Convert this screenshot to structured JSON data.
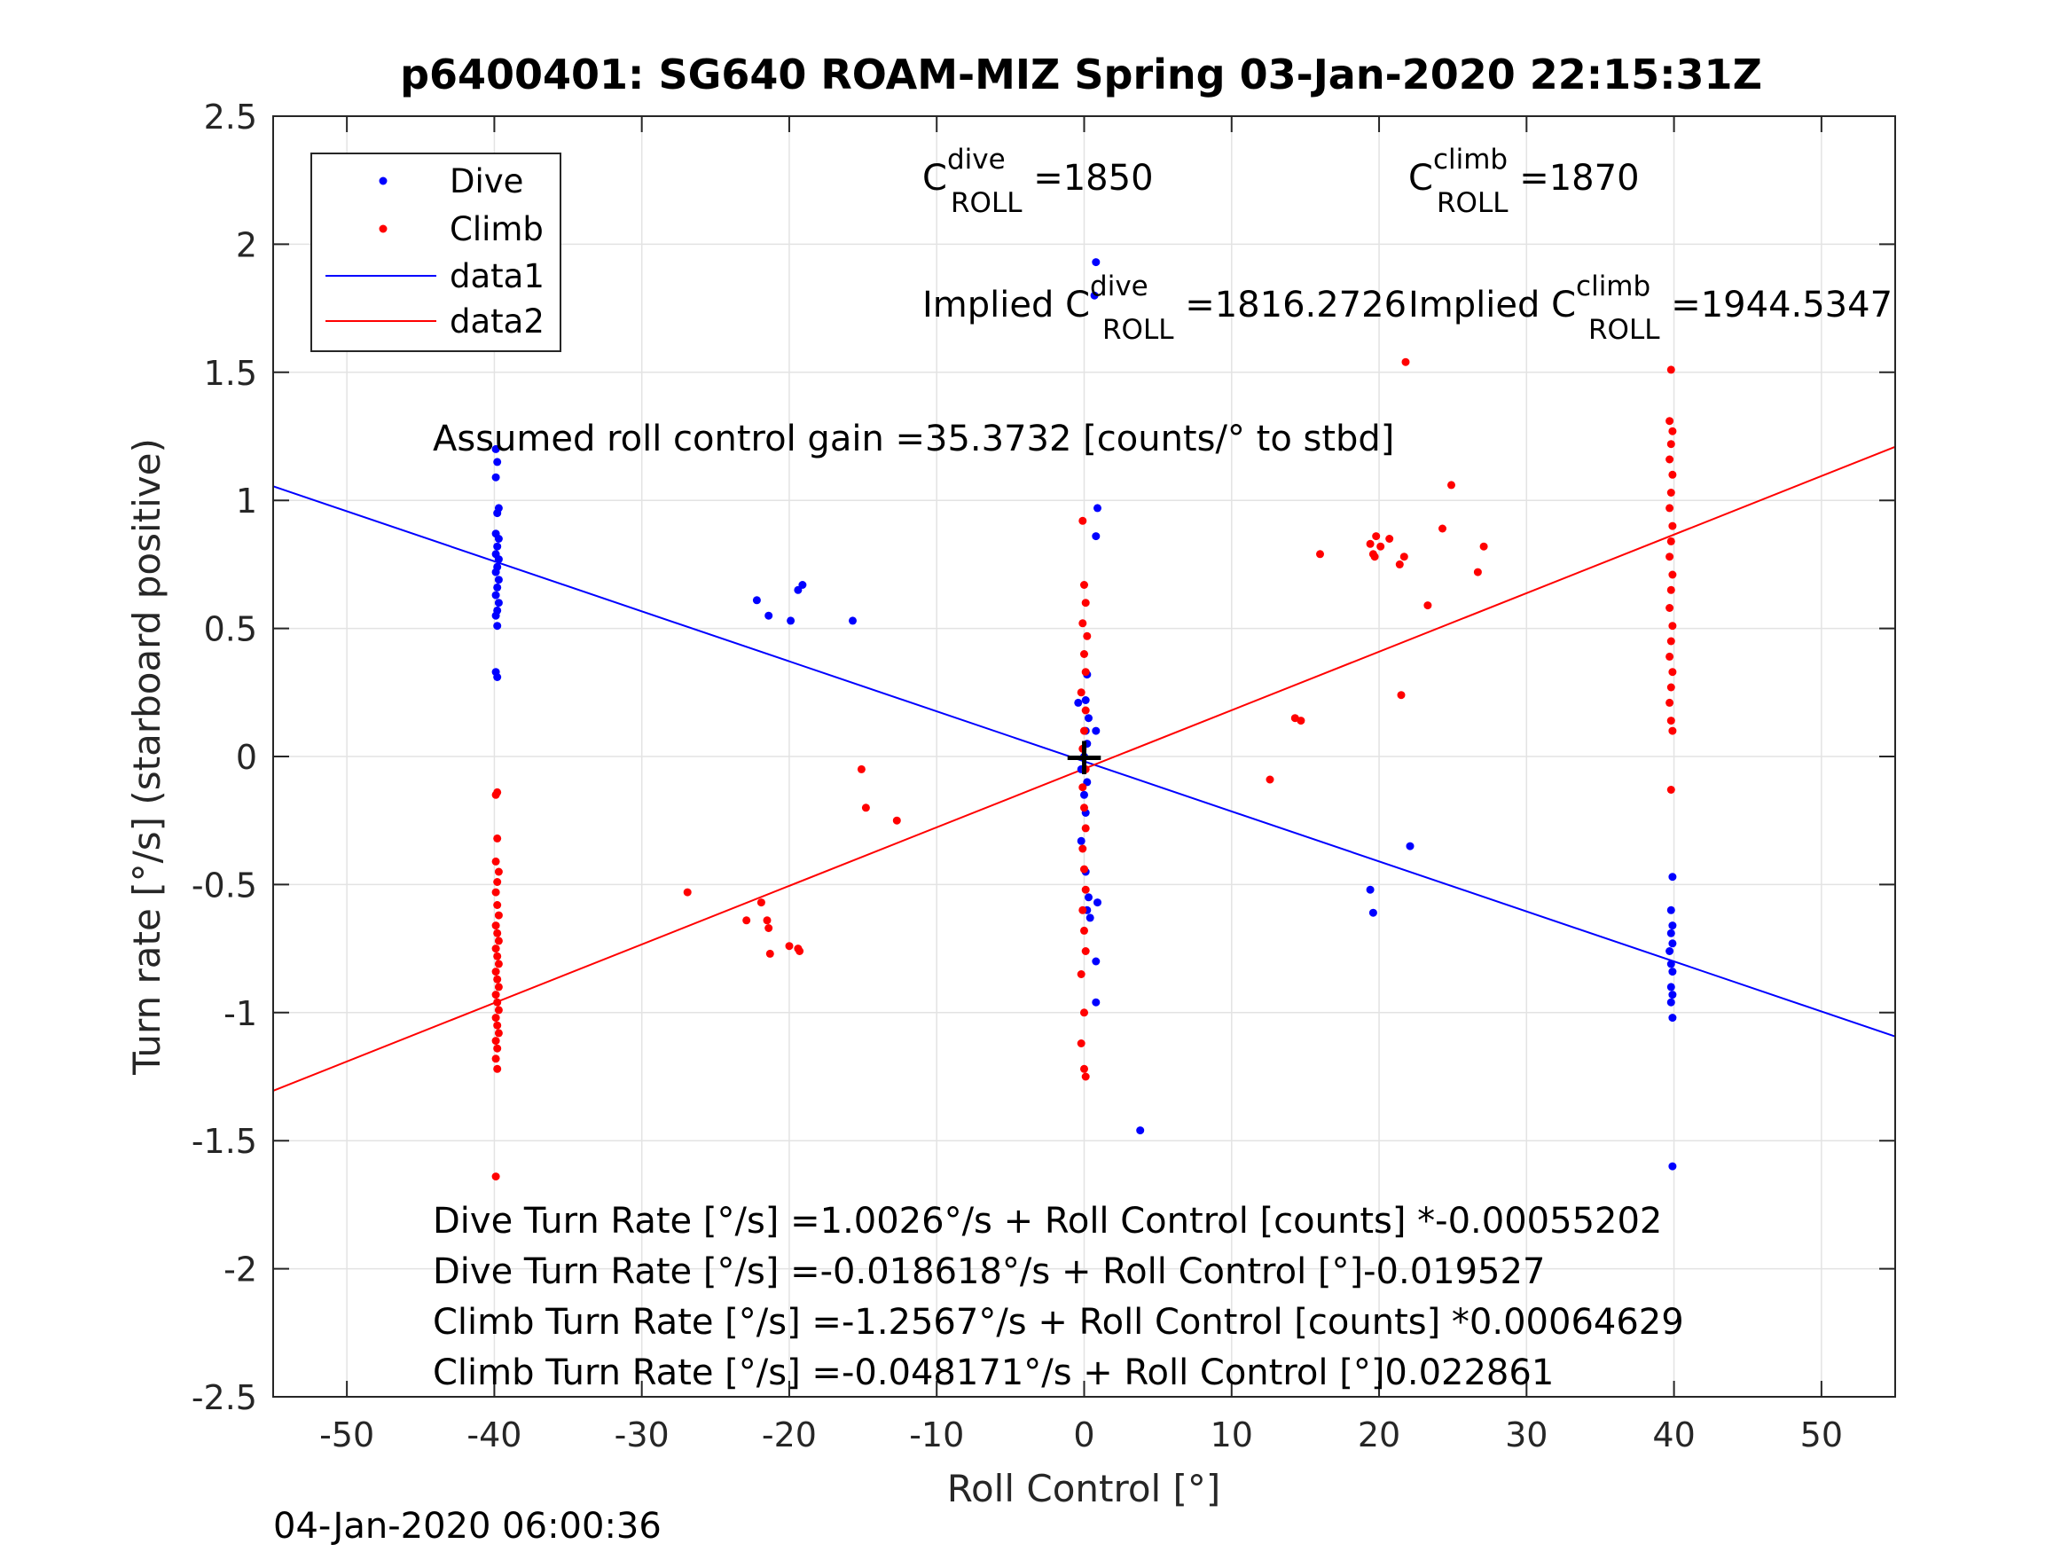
{
  "chart_data": {
    "type": "scatter",
    "title": "p6400401: SG640 ROAM-MIZ Spring 03-Jan-2020 22:15:31Z",
    "xlabel": "Roll Control [°]",
    "ylabel": "Turn rate [°/s] (starboard positive)",
    "xlim": [
      -55,
      55
    ],
    "ylim": [
      -2.5,
      2.5
    ],
    "xticks": [
      -50,
      -40,
      -30,
      -20,
      -10,
      0,
      10,
      20,
      30,
      40,
      50
    ],
    "yticks": [
      -2.5,
      -2,
      -1.5,
      -1,
      -0.5,
      0,
      0.5,
      1,
      1.5,
      2,
      2.5
    ],
    "xtick_labels": [
      "-50",
      "-40",
      "-30",
      "-20",
      "-10",
      "0",
      "10",
      "20",
      "30",
      "40",
      "50"
    ],
    "ytick_labels": [
      "-2.5",
      "-2",
      "-1.5",
      "-1",
      "-0.5",
      "0",
      "0.5",
      "1",
      "1.5",
      "2",
      "2.5"
    ],
    "grid": true,
    "legend_position": "top-left",
    "legend": [
      "Dive",
      "Climb",
      "data1",
      "data2"
    ],
    "colors": {
      "dive": "#0000ff",
      "climb": "#ff0000",
      "axis": "#262626",
      "grid": "#e3e3e3"
    },
    "series": [
      {
        "name": "Dive",
        "marker": "dot",
        "color": "#0000ff",
        "points": [
          [
            -39.9,
            1.2
          ],
          [
            -39.8,
            1.15
          ],
          [
            -39.9,
            1.09
          ],
          [
            -39.7,
            0.97
          ],
          [
            -39.8,
            0.95
          ],
          [
            -39.9,
            0.87
          ],
          [
            -39.7,
            0.85
          ],
          [
            -39.8,
            0.82
          ],
          [
            -39.9,
            0.79
          ],
          [
            -39.7,
            0.77
          ],
          [
            -39.8,
            0.74
          ],
          [
            -39.9,
            0.72
          ],
          [
            -39.7,
            0.69
          ],
          [
            -39.8,
            0.66
          ],
          [
            -39.9,
            0.63
          ],
          [
            -39.7,
            0.6
          ],
          [
            -39.8,
            0.57
          ],
          [
            -39.9,
            0.55
          ],
          [
            -39.8,
            0.51
          ],
          [
            -39.9,
            0.33
          ],
          [
            -39.8,
            0.31
          ],
          [
            -22.2,
            0.61
          ],
          [
            -21.4,
            0.55
          ],
          [
            -19.9,
            0.53
          ],
          [
            -19.4,
            0.65
          ],
          [
            -19.1,
            0.67
          ],
          [
            -15.7,
            0.53
          ],
          [
            -0.4,
            0.21
          ],
          [
            0.2,
            0.32
          ],
          [
            0.1,
            0.22
          ],
          [
            0.3,
            0.15
          ],
          [
            0.1,
            0.1
          ],
          [
            0.2,
            0.05
          ],
          [
            0.0,
            0.0
          ],
          [
            -0.2,
            -0.05
          ],
          [
            0.2,
            -0.1
          ],
          [
            0.0,
            -0.15
          ],
          [
            0.1,
            -0.22
          ],
          [
            -0.2,
            -0.33
          ],
          [
            0.1,
            -0.45
          ],
          [
            0.3,
            -0.55
          ],
          [
            0.2,
            -0.6
          ],
          [
            0.4,
            -0.63
          ],
          [
            0.8,
            0.1
          ],
          [
            0.9,
            -0.57
          ],
          [
            0.8,
            1.93
          ],
          [
            0.7,
            1.8
          ],
          [
            0.9,
            0.97
          ],
          [
            0.8,
            0.86
          ],
          [
            0.8,
            -0.8
          ],
          [
            0.8,
            -0.96
          ],
          [
            3.8,
            -1.46
          ],
          [
            19.4,
            -0.52
          ],
          [
            19.6,
            -0.61
          ],
          [
            22.1,
            -0.35
          ],
          [
            39.9,
            -0.47
          ],
          [
            39.8,
            -0.6
          ],
          [
            39.9,
            -0.66
          ],
          [
            39.8,
            -0.69
          ],
          [
            39.9,
            -0.73
          ],
          [
            39.7,
            -0.76
          ],
          [
            39.8,
            -0.81
          ],
          [
            39.9,
            -0.84
          ],
          [
            39.8,
            -0.9
          ],
          [
            39.9,
            -0.93
          ],
          [
            39.8,
            -0.96
          ],
          [
            39.9,
            -1.02
          ],
          [
            39.9,
            -1.6
          ]
        ]
      },
      {
        "name": "Climb",
        "marker": "dot",
        "color": "#ff0000",
        "points": [
          [
            -39.8,
            -0.14
          ],
          [
            -39.9,
            -0.15
          ],
          [
            -39.8,
            -0.32
          ],
          [
            -39.9,
            -0.41
          ],
          [
            -39.7,
            -0.45
          ],
          [
            -39.8,
            -0.49
          ],
          [
            -39.9,
            -0.53
          ],
          [
            -39.8,
            -0.58
          ],
          [
            -39.7,
            -0.62
          ],
          [
            -39.9,
            -0.66
          ],
          [
            -39.8,
            -0.69
          ],
          [
            -39.7,
            -0.72
          ],
          [
            -39.9,
            -0.75
          ],
          [
            -39.8,
            -0.78
          ],
          [
            -39.7,
            -0.81
          ],
          [
            -39.9,
            -0.84
          ],
          [
            -39.8,
            -0.87
          ],
          [
            -39.7,
            -0.9
          ],
          [
            -39.9,
            -0.93
          ],
          [
            -39.8,
            -0.96
          ],
          [
            -39.7,
            -0.99
          ],
          [
            -39.9,
            -1.02
          ],
          [
            -39.8,
            -1.05
          ],
          [
            -39.7,
            -1.08
          ],
          [
            -39.9,
            -1.11
          ],
          [
            -39.8,
            -1.14
          ],
          [
            -39.9,
            -1.18
          ],
          [
            -39.8,
            -1.22
          ],
          [
            -39.9,
            -1.64
          ],
          [
            -26.9,
            -0.53
          ],
          [
            -22.9,
            -0.64
          ],
          [
            -21.9,
            -0.57
          ],
          [
            -21.5,
            -0.64
          ],
          [
            -21.4,
            -0.67
          ],
          [
            -21.3,
            -0.77
          ],
          [
            -20.0,
            -0.74
          ],
          [
            -19.4,
            -0.75
          ],
          [
            -19.3,
            -0.76
          ],
          [
            -15.1,
            -0.05
          ],
          [
            -14.8,
            -0.2
          ],
          [
            -12.7,
            -0.25
          ],
          [
            -0.1,
            0.92
          ],
          [
            0.0,
            0.67
          ],
          [
            0.1,
            0.6
          ],
          [
            -0.1,
            0.52
          ],
          [
            0.2,
            0.47
          ],
          [
            0.0,
            0.4
          ],
          [
            0.1,
            0.33
          ],
          [
            -0.2,
            0.25
          ],
          [
            0.1,
            0.18
          ],
          [
            0.0,
            0.1
          ],
          [
            -0.1,
            0.03
          ],
          [
            0.1,
            -0.05
          ],
          [
            -0.1,
            -0.12
          ],
          [
            0.0,
            -0.2
          ],
          [
            0.1,
            -0.28
          ],
          [
            -0.1,
            -0.36
          ],
          [
            0.0,
            -0.44
          ],
          [
            0.1,
            -0.52
          ],
          [
            -0.1,
            -0.6
          ],
          [
            0.0,
            -0.68
          ],
          [
            0.1,
            -0.76
          ],
          [
            -0.2,
            -0.85
          ],
          [
            0.0,
            -1.0
          ],
          [
            -0.2,
            -1.12
          ],
          [
            0.0,
            -1.22
          ],
          [
            0.1,
            -1.25
          ],
          [
            12.6,
            -0.09
          ],
          [
            14.3,
            0.15
          ],
          [
            14.7,
            0.14
          ],
          [
            16.0,
            0.79
          ],
          [
            19.4,
            0.83
          ],
          [
            19.6,
            0.79
          ],
          [
            19.7,
            0.78
          ],
          [
            19.8,
            0.86
          ],
          [
            20.1,
            0.82
          ],
          [
            20.7,
            0.85
          ],
          [
            21.4,
            0.75
          ],
          [
            21.5,
            0.24
          ],
          [
            21.7,
            0.78
          ],
          [
            21.8,
            1.54
          ],
          [
            23.3,
            0.59
          ],
          [
            24.3,
            0.89
          ],
          [
            24.9,
            1.06
          ],
          [
            26.7,
            0.72
          ],
          [
            27.1,
            0.82
          ],
          [
            39.8,
            1.51
          ],
          [
            39.7,
            1.31
          ],
          [
            39.9,
            1.27
          ],
          [
            39.8,
            1.22
          ],
          [
            39.7,
            1.16
          ],
          [
            39.9,
            1.1
          ],
          [
            39.8,
            1.03
          ],
          [
            39.7,
            0.97
          ],
          [
            39.9,
            0.9
          ],
          [
            39.8,
            0.84
          ],
          [
            39.7,
            0.78
          ],
          [
            39.9,
            0.71
          ],
          [
            39.8,
            0.65
          ],
          [
            39.7,
            0.58
          ],
          [
            39.9,
            0.51
          ],
          [
            39.8,
            0.45
          ],
          [
            39.7,
            0.39
          ],
          [
            39.9,
            0.33
          ],
          [
            39.8,
            0.27
          ],
          [
            39.7,
            0.21
          ],
          [
            39.8,
            0.14
          ],
          [
            39.9,
            0.1
          ],
          [
            39.8,
            -0.13
          ]
        ]
      },
      {
        "name": "data1",
        "marker": "line",
        "color": "#0000ff",
        "points": [
          [
            -55,
            1.055
          ],
          [
            55,
            -1.093
          ]
        ]
      },
      {
        "name": "data2",
        "marker": "line",
        "color": "#ff0000",
        "points": [
          [
            -55,
            -1.305
          ],
          [
            55,
            1.209
          ]
        ]
      }
    ],
    "origin_marker": {
      "label": "+",
      "point": [
        0,
        0
      ]
    },
    "annotations": {
      "c_dive_prefix": "C",
      "c_dive_super": "dive",
      "c_dive_sub": "ROLL",
      "c_dive_value": " =1850",
      "c_climb_prefix": "C",
      "c_climb_super": "climb",
      "c_climb_sub": "ROLL",
      "c_climb_value": " =1870",
      "implied_dive_prefix": "Implied C",
      "implied_dive_super": "dive",
      "implied_dive_sub": "ROLL",
      "implied_dive_value": " =1816.2726",
      "implied_climb_prefix": "Implied C",
      "implied_climb_super": "climb",
      "implied_climb_sub": "ROLL",
      "implied_climb_value": " =1944.5347",
      "gain": "Assumed roll control gain =35.3732 [counts/° to stbd]",
      "dive_fit_counts": "Dive Turn Rate [°/s] =1.0026°/s + Roll Control [counts] *-0.00055202",
      "dive_fit_deg": "Dive Turn Rate [°/s] =-0.018618°/s + Roll Control [°]-0.019527",
      "climb_fit_counts": "Climb Turn Rate [°/s] =-1.2567°/s + Roll Control [counts] *0.00064629",
      "climb_fit_deg": "Climb Turn Rate [°/s] =-0.048171°/s + Roll Control [°]0.022861"
    }
  },
  "footer_timestamp": "04-Jan-2020 06:00:36"
}
